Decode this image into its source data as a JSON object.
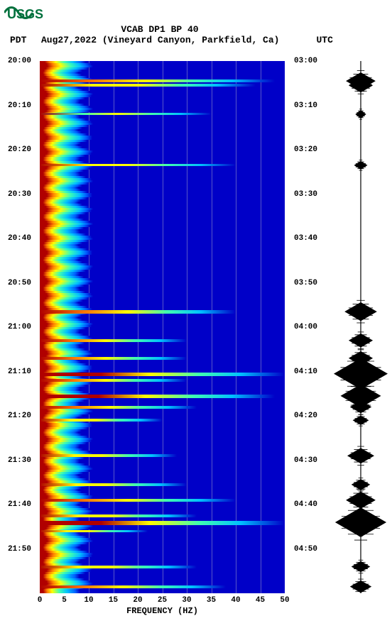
{
  "logo": {
    "text": "USGS",
    "color": "#00703c"
  },
  "header": {
    "title": "VCAB DP1 BP 40",
    "left": "PDT",
    "date": "Aug27,2022 (Vineyard Canyon, Parkfield, Ca)",
    "right": "UTC",
    "title_fontsize": 13
  },
  "spectrogram": {
    "type": "spectrogram",
    "background_color": "#0000c8",
    "xlabel": "FREQUENCY (HZ)",
    "xlim": [
      0,
      50
    ],
    "xtick_step": 5,
    "grid_color": "#c8c8c870",
    "pdt_start": "20:00",
    "pdt_end": "22:00",
    "utc_start": "03:00",
    "utc_end": "05:00",
    "pdt_ticks": [
      "20:00",
      "20:10",
      "20:20",
      "20:30",
      "20:40",
      "20:50",
      "21:00",
      "21:10",
      "21:20",
      "21:30",
      "21:40",
      "21:50"
    ],
    "utc_ticks": [
      "03:00",
      "03:10",
      "03:20",
      "03:30",
      "03:40",
      "03:50",
      "04:00",
      "04:10",
      "04:20",
      "04:30",
      "04:40",
      "04:50"
    ],
    "colormap": {
      "low": "#00008b",
      "c0": "#0000c8",
      "c1": "#0060ff",
      "c2": "#00c0ff",
      "c3": "#40ffb0",
      "c4": "#c0ff30",
      "c5": "#ffff00",
      "c6": "#ff8000",
      "high": "#b00000"
    },
    "low_freq_column": {
      "x_hz": [
        0,
        8
      ],
      "colors_cycle": [
        "#b00000",
        "#ff6000",
        "#ffff00",
        "#40ffb0",
        "#00c0ff"
      ]
    },
    "events": [
      {
        "t_min": 4.5,
        "intensity": 0.55,
        "max_hz": 48
      },
      {
        "t_min": 5.5,
        "intensity": 0.5,
        "max_hz": 44
      },
      {
        "t_min": 12.0,
        "intensity": 0.35,
        "max_hz": 35
      },
      {
        "t_min": 23.5,
        "intensity": 0.4,
        "max_hz": 40
      },
      {
        "t_min": 56.5,
        "intensity": 0.7,
        "max_hz": 40
      },
      {
        "t_min": 63.0,
        "intensity": 0.55,
        "max_hz": 30
      },
      {
        "t_min": 67.0,
        "intensity": 0.6,
        "max_hz": 30
      },
      {
        "t_min": 70.5,
        "intensity": 0.95,
        "max_hz": 50
      },
      {
        "t_min": 72.0,
        "intensity": 0.6,
        "max_hz": 30
      },
      {
        "t_min": 75.5,
        "intensity": 0.85,
        "max_hz": 48
      },
      {
        "t_min": 78.0,
        "intensity": 0.55,
        "max_hz": 32
      },
      {
        "t_min": 81.0,
        "intensity": 0.45,
        "max_hz": 25
      },
      {
        "t_min": 89.0,
        "intensity": 0.5,
        "max_hz": 28
      },
      {
        "t_min": 95.5,
        "intensity": 0.5,
        "max_hz": 30
      },
      {
        "t_min": 99.0,
        "intensity": 0.65,
        "max_hz": 40
      },
      {
        "t_min": 102.5,
        "intensity": 0.5,
        "max_hz": 32
      },
      {
        "t_min": 104.0,
        "intensity": 0.9,
        "max_hz": 50
      },
      {
        "t_min": 106.0,
        "intensity": 0.4,
        "max_hz": 22
      },
      {
        "t_min": 114.0,
        "intensity": 0.5,
        "max_hz": 32
      },
      {
        "t_min": 118.5,
        "intensity": 0.55,
        "max_hz": 38
      }
    ]
  },
  "seismogram": {
    "color": "#000000",
    "baseline_x": 38,
    "total_min": 120,
    "bursts": [
      {
        "t_min": 4.5,
        "amp": 0.55
      },
      {
        "t_min": 5.5,
        "amp": 0.45
      },
      {
        "t_min": 12.0,
        "amp": 0.2
      },
      {
        "t_min": 23.5,
        "amp": 0.25
      },
      {
        "t_min": 56.5,
        "amp": 0.6
      },
      {
        "t_min": 63.0,
        "amp": 0.45
      },
      {
        "t_min": 67.0,
        "amp": 0.45
      },
      {
        "t_min": 70.5,
        "amp": 1.0
      },
      {
        "t_min": 72.0,
        "amp": 0.35
      },
      {
        "t_min": 75.5,
        "amp": 0.75
      },
      {
        "t_min": 78.0,
        "amp": 0.4
      },
      {
        "t_min": 81.0,
        "amp": 0.3
      },
      {
        "t_min": 89.0,
        "amp": 0.5
      },
      {
        "t_min": 95.5,
        "amp": 0.35
      },
      {
        "t_min": 99.0,
        "amp": 0.55
      },
      {
        "t_min": 102.5,
        "amp": 0.35
      },
      {
        "t_min": 104.0,
        "amp": 0.95
      },
      {
        "t_min": 106.0,
        "amp": 0.25
      },
      {
        "t_min": 114.0,
        "amp": 0.35
      },
      {
        "t_min": 118.5,
        "amp": 0.4
      }
    ]
  }
}
